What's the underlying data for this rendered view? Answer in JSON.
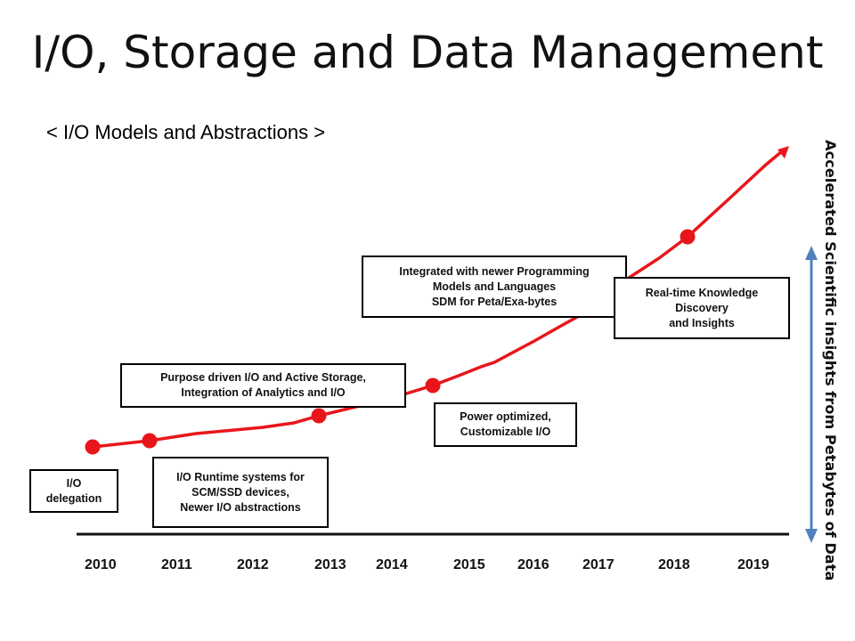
{
  "title": "I/O, Storage and Data Management",
  "subtitle": "< I/O Models and Abstractions >",
  "timeline": {
    "years": [
      "2010",
      "2011",
      "2012",
      "2013",
      "2014",
      "2015",
      "2016",
      "2017",
      "2018",
      "2019"
    ]
  },
  "milestones": [
    {
      "lines": [
        "I/O",
        "delegation"
      ]
    },
    {
      "lines": [
        "I/O Runtime systems for",
        "SCM/SSD devices,",
        "Newer I/O abstractions"
      ]
    },
    {
      "lines": [
        "Purpose driven I/O and Active Storage,",
        "Integration of Analytics and I/O"
      ]
    },
    {
      "lines": [
        "Power optimized,",
        "Customizable I/O"
      ]
    },
    {
      "lines": [
        "Integrated with newer Programming",
        "Models and Languages",
        "SDM for Peta/Exa-bytes"
      ]
    },
    {
      "lines": [
        "Real-time Knowledge",
        "Discovery",
        "and Insights"
      ]
    }
  ],
  "side_label": "Accelerated Scientific insights from Petabytes of Data",
  "colors": {
    "curve": "#e8161b",
    "axis": "#111111",
    "arrow": "#4f81bd"
  }
}
